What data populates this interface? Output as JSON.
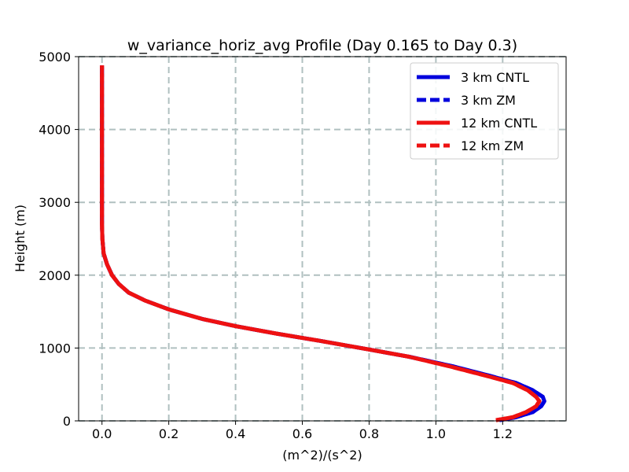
{
  "chart_data": {
    "type": "line",
    "title": "w_variance_horiz_avg Profile (Day 0.165 to Day 0.3)",
    "xlabel": "(m^2)/(s^2)",
    "ylabel": "Height (m)",
    "xlim": [
      -0.07,
      1.39
    ],
    "ylim": [
      0,
      5000
    ],
    "xticks": [
      0.0,
      0.2,
      0.4,
      0.6,
      0.8,
      1.0,
      1.2
    ],
    "xtick_labels": [
      "0.0",
      "0.2",
      "0.4",
      "0.6",
      "0.8",
      "1.0",
      "1.2"
    ],
    "yticks": [
      0,
      1000,
      2000,
      3000,
      4000,
      5000
    ],
    "ytick_labels": [
      "0",
      "1000",
      "2000",
      "3000",
      "4000",
      "5000"
    ],
    "grid": true,
    "legend_position": "top-right",
    "series": [
      {
        "name": "3 km CNTL",
        "color": "#0000dd",
        "style": "solid",
        "points": [
          [
            1.19,
            10
          ],
          [
            1.24,
            50
          ],
          [
            1.29,
            120
          ],
          [
            1.315,
            200
          ],
          [
            1.325,
            270
          ],
          [
            1.32,
            330
          ],
          [
            1.29,
            420
          ],
          [
            1.24,
            520
          ],
          [
            1.16,
            620
          ],
          [
            1.05,
            750
          ],
          [
            0.92,
            880
          ],
          [
            0.8,
            980
          ],
          [
            0.65,
            1100
          ],
          [
            0.52,
            1200
          ],
          [
            0.4,
            1300
          ],
          [
            0.3,
            1400
          ],
          [
            0.2,
            1530
          ],
          [
            0.13,
            1650
          ],
          [
            0.08,
            1760
          ],
          [
            0.05,
            1880
          ],
          [
            0.03,
            2000
          ],
          [
            0.015,
            2150
          ],
          [
            0.005,
            2300
          ],
          [
            0.001,
            2500
          ],
          [
            0.0,
            2700
          ],
          [
            0.0,
            3200
          ],
          [
            0.0,
            4000
          ],
          [
            0.0,
            4880
          ]
        ]
      },
      {
        "name": "3 km ZM",
        "color": "#0000dd",
        "style": "dashed",
        "points": [
          [
            1.19,
            10
          ],
          [
            1.24,
            50
          ],
          [
            1.29,
            120
          ],
          [
            1.315,
            200
          ],
          [
            1.325,
            270
          ],
          [
            1.32,
            330
          ],
          [
            1.29,
            420
          ],
          [
            1.24,
            520
          ],
          [
            1.16,
            620
          ],
          [
            1.05,
            750
          ],
          [
            0.92,
            880
          ],
          [
            0.8,
            980
          ],
          [
            0.65,
            1100
          ],
          [
            0.52,
            1200
          ],
          [
            0.4,
            1300
          ],
          [
            0.3,
            1400
          ],
          [
            0.2,
            1530
          ],
          [
            0.13,
            1650
          ],
          [
            0.08,
            1760
          ],
          [
            0.05,
            1880
          ],
          [
            0.03,
            2000
          ],
          [
            0.015,
            2150
          ],
          [
            0.005,
            2300
          ],
          [
            0.001,
            2500
          ],
          [
            0.0,
            2700
          ],
          [
            0.0,
            3200
          ],
          [
            0.0,
            4000
          ],
          [
            0.0,
            4880
          ]
        ]
      },
      {
        "name": "12 km CNTL",
        "color": "#ee1111",
        "style": "solid",
        "points": [
          [
            1.18,
            10
          ],
          [
            1.23,
            50
          ],
          [
            1.27,
            120
          ],
          [
            1.3,
            200
          ],
          [
            1.31,
            270
          ],
          [
            1.3,
            330
          ],
          [
            1.275,
            420
          ],
          [
            1.23,
            520
          ],
          [
            1.15,
            620
          ],
          [
            1.04,
            750
          ],
          [
            0.92,
            880
          ],
          [
            0.8,
            980
          ],
          [
            0.65,
            1100
          ],
          [
            0.52,
            1200
          ],
          [
            0.4,
            1300
          ],
          [
            0.3,
            1400
          ],
          [
            0.2,
            1530
          ],
          [
            0.13,
            1650
          ],
          [
            0.08,
            1760
          ],
          [
            0.05,
            1880
          ],
          [
            0.03,
            2000
          ],
          [
            0.015,
            2150
          ],
          [
            0.005,
            2300
          ],
          [
            0.001,
            2500
          ],
          [
            0.0,
            2700
          ],
          [
            0.0,
            3200
          ],
          [
            0.0,
            4000
          ],
          [
            0.0,
            4880
          ]
        ]
      },
      {
        "name": "12 km ZM",
        "color": "#ee1111",
        "style": "dashed",
        "points": [
          [
            1.18,
            10
          ],
          [
            1.23,
            50
          ],
          [
            1.27,
            120
          ],
          [
            1.3,
            200
          ],
          [
            1.31,
            270
          ],
          [
            1.3,
            330
          ],
          [
            1.275,
            420
          ],
          [
            1.23,
            520
          ],
          [
            1.15,
            620
          ],
          [
            1.04,
            750
          ],
          [
            0.92,
            880
          ],
          [
            0.8,
            980
          ],
          [
            0.65,
            1100
          ],
          [
            0.52,
            1200
          ],
          [
            0.4,
            1300
          ],
          [
            0.3,
            1400
          ],
          [
            0.2,
            1530
          ],
          [
            0.13,
            1650
          ],
          [
            0.08,
            1760
          ],
          [
            0.05,
            1880
          ],
          [
            0.03,
            2000
          ],
          [
            0.015,
            2150
          ],
          [
            0.005,
            2300
          ],
          [
            0.001,
            2500
          ],
          [
            0.0,
            2700
          ],
          [
            0.0,
            3200
          ],
          [
            0.0,
            4000
          ],
          [
            0.0,
            4880
          ]
        ]
      }
    ]
  }
}
